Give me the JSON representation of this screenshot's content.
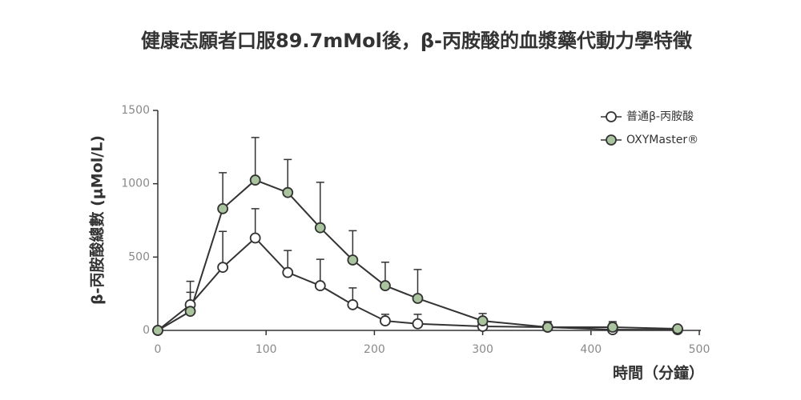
{
  "chart_data": {
    "type": "line",
    "title": "健康志願者口服89.7mMol後，β-丙胺酸的血漿藥代動力學特徵",
    "x_label": "時間（分鐘）",
    "y_label": "β-丙胺酸總數 (μMol/L)",
    "x": [
      0,
      30,
      60,
      90,
      120,
      150,
      180,
      210,
      240,
      300,
      360,
      420,
      480
    ],
    "series": [
      {
        "name": "普通β-丙胺酸",
        "color": "#ffffff",
        "values": [
          0,
          175,
          430,
          630,
          395,
          305,
          175,
          65,
          45,
          27,
          22,
          5,
          5
        ],
        "errors": [
          null,
          160,
          245,
          200,
          150,
          180,
          115,
          45,
          65,
          45,
          33,
          45,
          22
        ]
      },
      {
        "name": "OXYMaster®",
        "color": "#a9c49e",
        "values": [
          0,
          130,
          830,
          1025,
          940,
          700,
          480,
          305,
          218,
          65,
          22,
          22,
          11
        ],
        "errors": [
          null,
          130,
          245,
          290,
          225,
          310,
          200,
          160,
          197,
          50,
          38,
          38,
          16
        ]
      }
    ],
    "xlim": [
      0,
      500
    ],
    "xticks": [
      0,
      100,
      200,
      300,
      400,
      500
    ],
    "ylim": [
      0,
      1500
    ],
    "yticks": [
      0,
      500,
      1000,
      1500
    ],
    "legend": "top-right"
  }
}
